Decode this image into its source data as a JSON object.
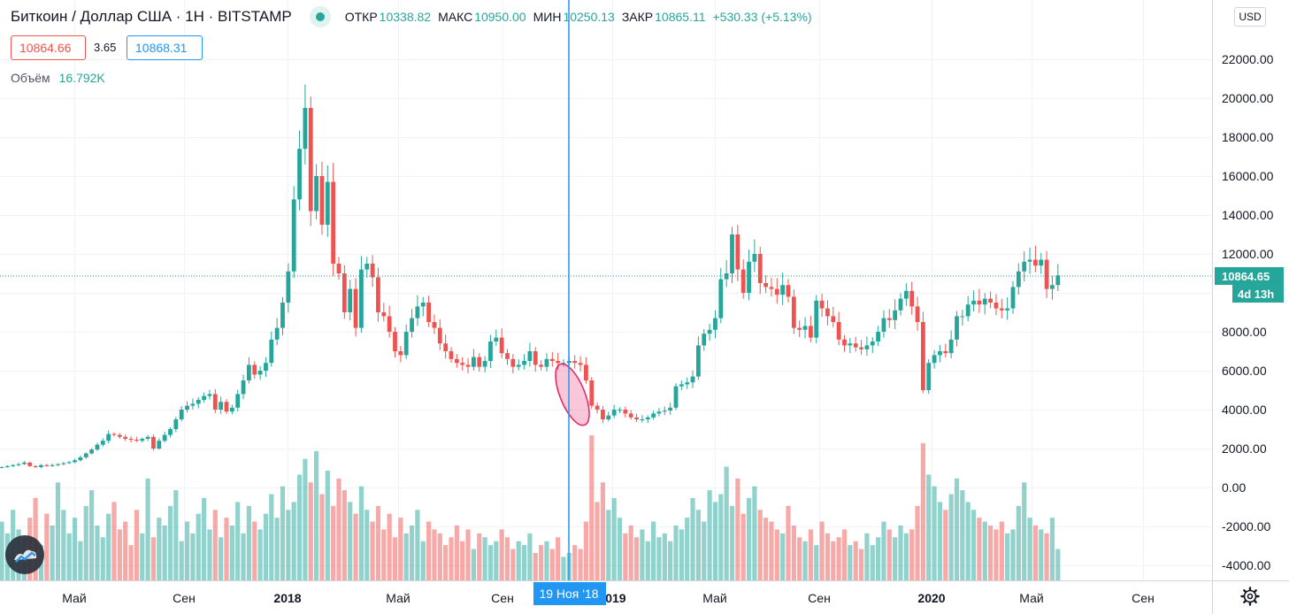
{
  "header": {
    "symbol": "Биткоин / Доллар США · 1H · BITSTAMP",
    "ohlc": [
      {
        "key": "ОТКР",
        "value": "10338.82"
      },
      {
        "key": "МАКС",
        "value": "10950.00"
      },
      {
        "key": "МИН",
        "value": "10250.13"
      },
      {
        "key": "ЗАКР",
        "value": "10865.11"
      },
      {
        "key": "",
        "value": "+530.33 (+5.13%)"
      }
    ]
  },
  "bid": "10864.66",
  "spread": "3.65",
  "ask": "10868.31",
  "volume": {
    "label": "Объём",
    "value": "16.792K"
  },
  "currency": "USD",
  "price_scale": {
    "ticks": [
      "22000.00",
      "20000.00",
      "18000.00",
      "16000.00",
      "14000.00",
      "12000.00",
      "8000.00",
      "6000.00",
      "4000.00",
      "2000.00",
      "0.00",
      "-2000.00",
      "-4000.00"
    ],
    "last_price": "10864.65",
    "countdown": "4d 13h"
  },
  "time_axis": {
    "labels": [
      "Май",
      "Сен",
      "2018",
      "Май",
      "Сен",
      "2019",
      "Май",
      "Сен",
      "2020",
      "Май",
      "Сен"
    ],
    "crosshair_label": "19 Ноя '18"
  },
  "colors": {
    "up": "#26a69a",
    "down": "#ef5350",
    "crosshair": "#2196f3",
    "highlight": "#e91e63"
  },
  "chart_data": {
    "type": "candlestick",
    "x_unit": "week",
    "y_range": [
      -5000,
      24500
    ],
    "last_price": 10864.65,
    "crosshair_date": "2018-11-19",
    "price": [
      1050,
      1100,
      1150,
      1200,
      1280,
      1100,
      1050,
      1150,
      1100,
      1150,
      1200,
      1250,
      1300,
      1400,
      1550,
      1750,
      1950,
      2200,
      2400,
      2750,
      2700,
      2600,
      2500,
      2450,
      2400,
      2500,
      2600,
      2000,
      2400,
      2700,
      3000,
      3500,
      4000,
      4200,
      4300,
      4500,
      4700,
      4800,
      4000,
      4400,
      3900,
      4100,
      4800,
      5500,
      6300,
      5800,
      6000,
      6400,
      7600,
      8200,
      9500,
      11100,
      14800,
      17400,
      19500,
      14200,
      16000,
      13500,
      15700,
      11500,
      11000,
      9000,
      10200,
      8200,
      11200,
      11500,
      10800,
      9000,
      8800,
      8000,
      7000,
      6800,
      8000,
      8700,
      9300,
      9500,
      8500,
      8200,
      7400,
      7000,
      6600,
      6400,
      6300,
      6200,
      6700,
      6200,
      6500,
      7500,
      7700,
      6900,
      6600,
      6200,
      6300,
      6500,
      7000,
      6300,
      6200,
      6600,
      6500,
      6400,
      6400,
      6500,
      6400,
      6300,
      5500,
      4200,
      4000,
      3500,
      3700,
      4000,
      4000,
      3800,
      3600,
      3500,
      3500,
      3600,
      3800,
      3900,
      3950,
      4100,
      5200,
      5300,
      5400,
      5700,
      7300,
      7900,
      8100,
      8700,
      10700,
      11000,
      13000,
      11200,
      10000,
      11600,
      12000,
      10500,
      10300,
      10200,
      9900,
      10400,
      9800,
      8200,
      8100,
      8300,
      7700,
      9600,
      9200,
      8800,
      8500,
      7600,
      7300,
      7400,
      7200,
      7100,
      7300,
      7500,
      8000,
      8700,
      8600,
      9100,
      9700,
      10100,
      9300,
      8500,
      5000,
      6400,
      6800,
      7000,
      6900,
      7600,
      8800,
      8800,
      9400,
      9600,
      9400,
      9700,
      9500,
      9200,
      9100,
      9200,
      10300,
      11100,
      11600,
      11700,
      11400,
      11700,
      10200,
      10400,
      10900
    ],
    "volume": [
      1500,
      1200,
      1800,
      1300,
      1100,
      1600,
      2100,
      900,
      1700,
      1400,
      2500,
      1800,
      1200,
      1600,
      1000,
      1900,
      2300,
      1400,
      1100,
      1700,
      2000,
      1300,
      1500,
      900,
      1800,
      1200,
      2600,
      1100,
      1600,
      1400,
      1900,
      2300,
      1000,
      1500,
      1200,
      1700,
      2100,
      1300,
      1800,
      1100,
      1600,
      1400,
      2000,
      1200,
      1900,
      1500,
      1300,
      1700,
      2200,
      1600,
      2400,
      1800,
      2000,
      2700,
      3100,
      2500,
      3300,
      2200,
      2800,
      1900,
      2600,
      2300,
      2000,
      1700,
      2400,
      1800,
      1500,
      1900,
      1300,
      1700,
      1100,
      1600,
      1200,
      1400,
      1800,
      1000,
      1500,
      1300,
      1200,
      900,
      1100,
      1400,
      1000,
      1300,
      800,
      1200,
      1100,
      900,
      1000,
      1300,
      1100,
      800,
      1000,
      900,
      1200,
      700,
      900,
      1000,
      800,
      1100,
      600,
      700,
      900,
      800,
      1500,
      3700,
      2000,
      2500,
      1800,
      2100,
      1600,
      1200,
      1400,
      1100,
      1300,
      1000,
      1500,
      1100,
      1200,
      1000,
      1400,
      1300,
      1600,
      2100,
      1800,
      1500,
      2300,
      2000,
      2200,
      2900,
      1900,
      2600,
      1700,
      2100,
      2400,
      1800,
      1600,
      1500,
      1300,
      1200,
      1900,
      1400,
      1100,
      1000,
      1300,
      900,
      1500,
      1200,
      1000,
      1100,
      1300,
      900,
      1000,
      800,
      1200,
      900,
      1100,
      1500,
      1300,
      1100,
      1400,
      1200,
      1300,
      1900,
      3500,
      2700,
      2400,
      2000,
      1800,
      2200,
      2600,
      2300,
      2000,
      1800,
      1600,
      1500,
      1400,
      1300,
      1500,
      1200,
      1300,
      1900,
      2500,
      1600,
      1400,
      1300,
      1200,
      1600,
      800
    ]
  }
}
